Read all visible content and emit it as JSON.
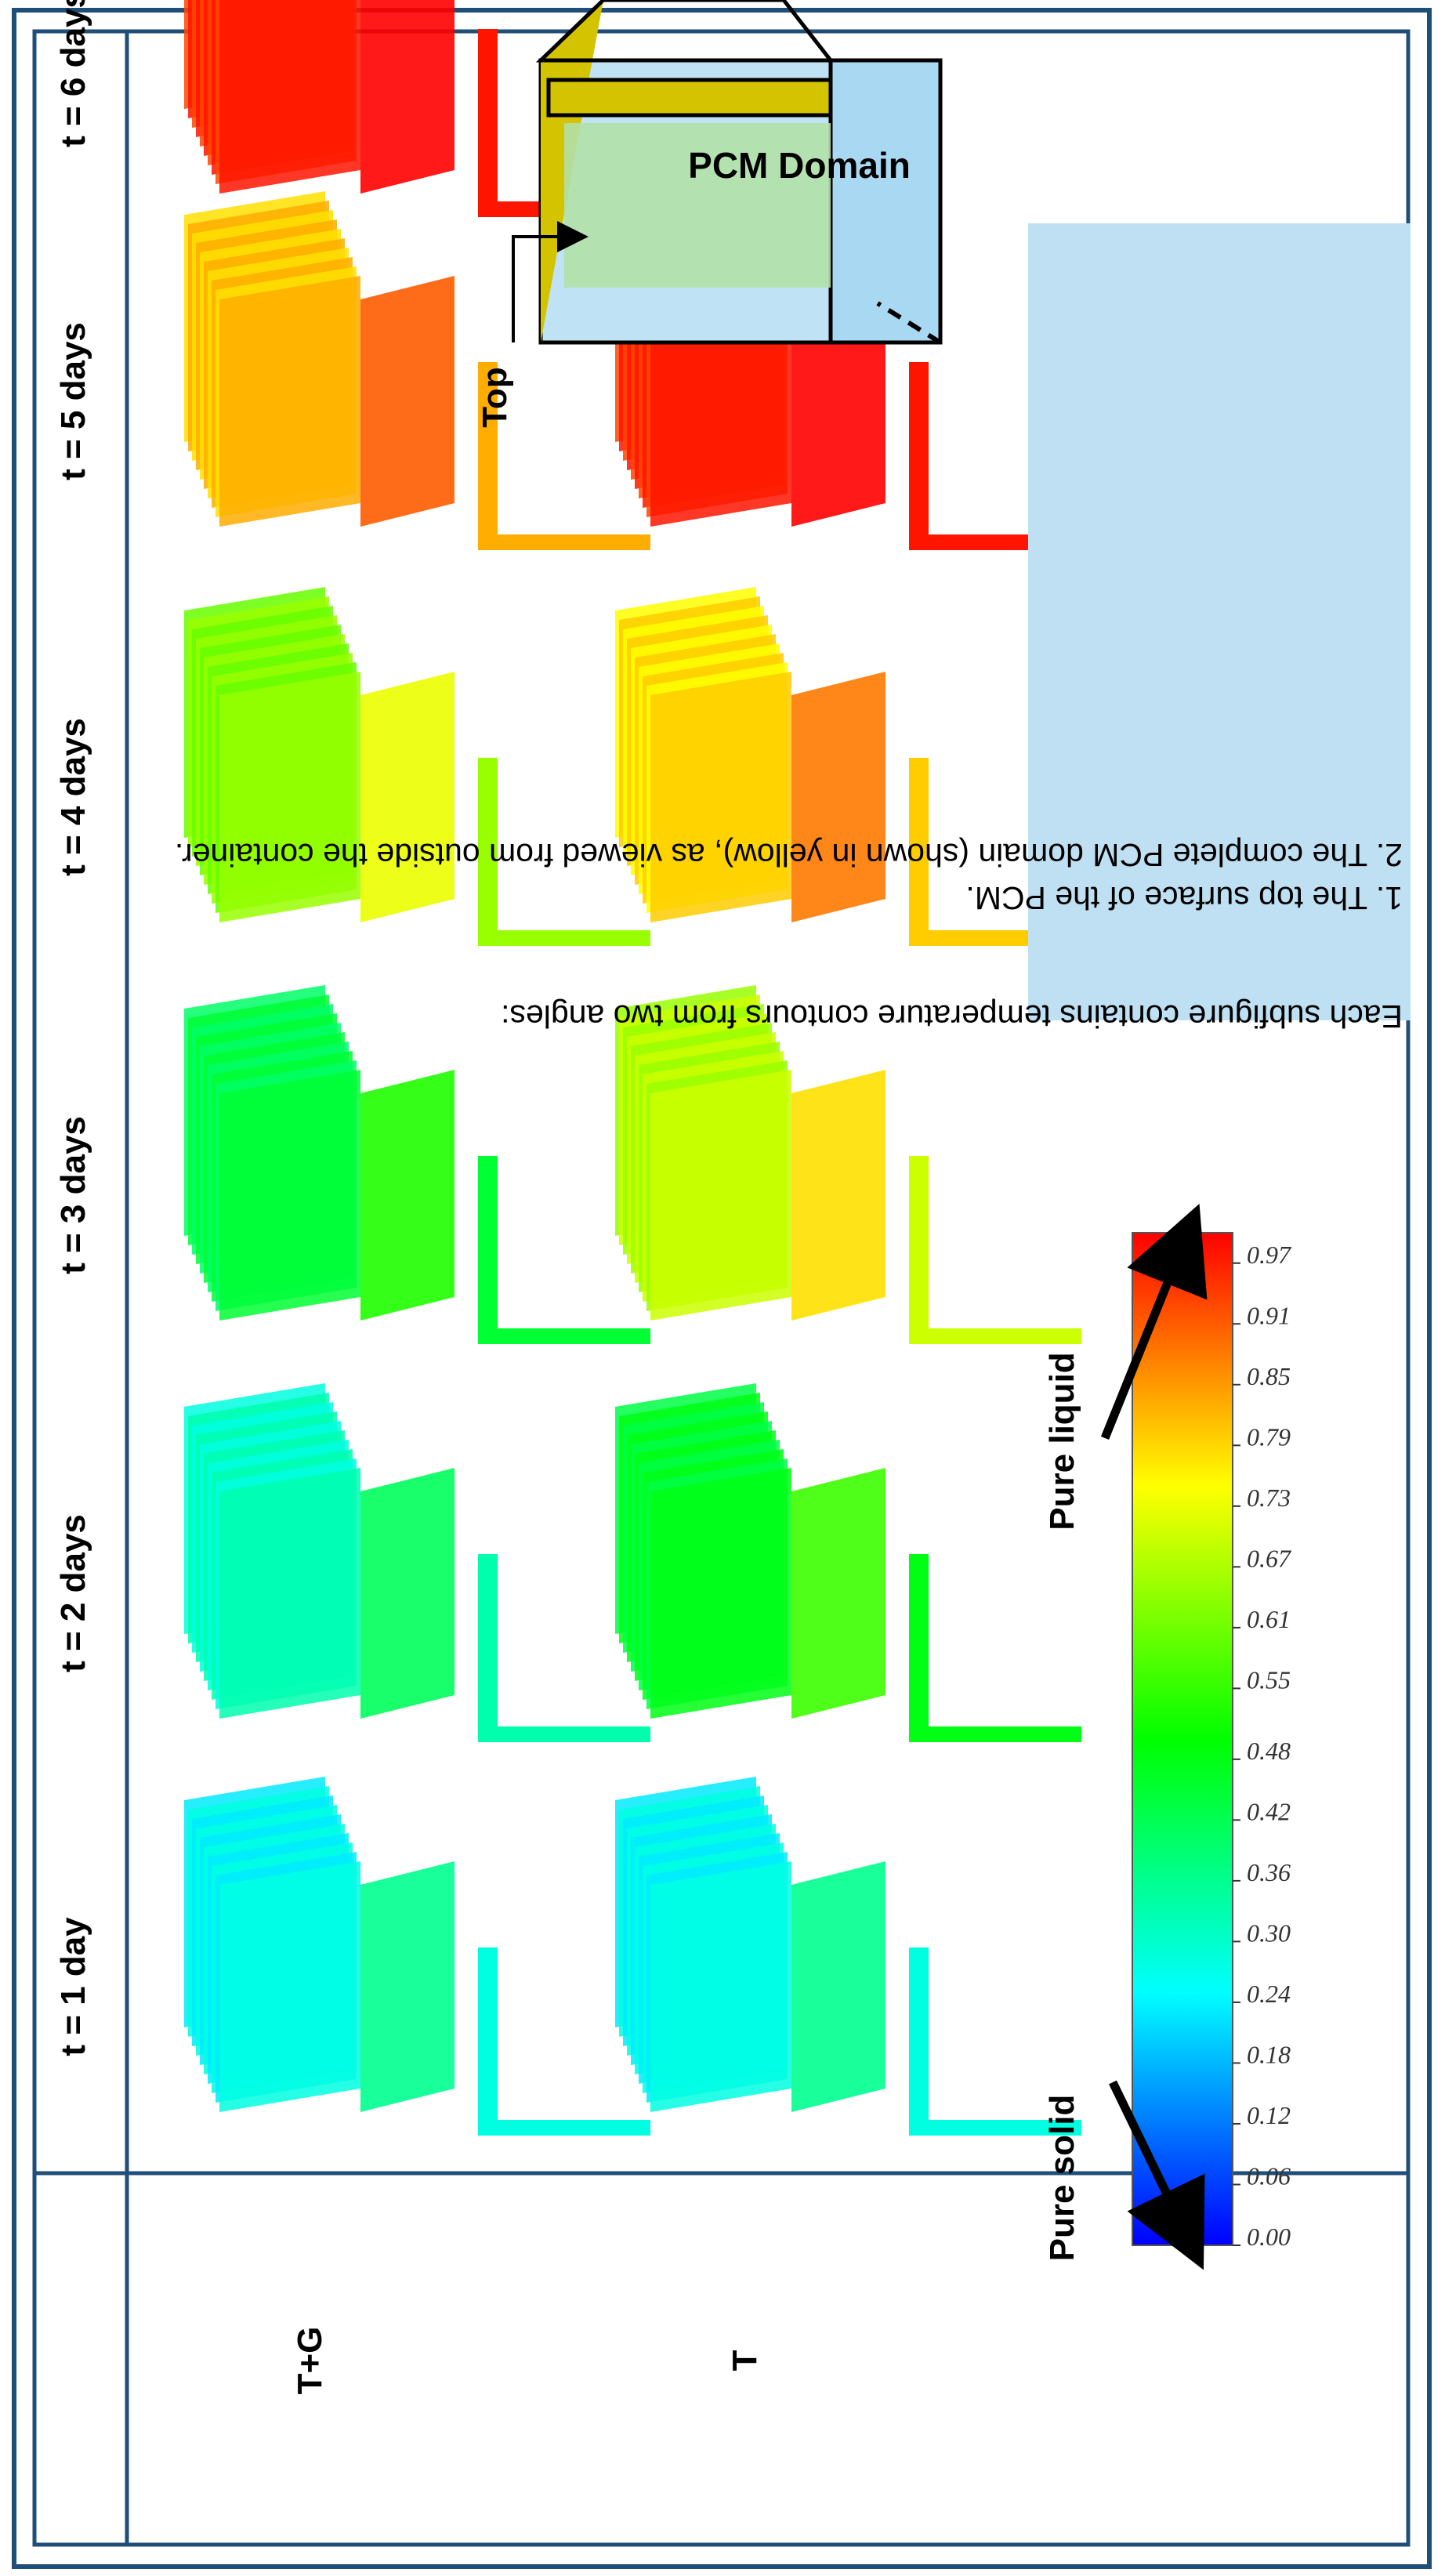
{
  "rows": [
    "T+G",
    "T"
  ],
  "columns": [
    "t = 1 day",
    "t = 2 days",
    "t = 3 days",
    "t = 4 days",
    "t = 5 days",
    "t = 6 days"
  ],
  "contour_levels": [
    {
      "row": "T+G",
      "levels": [
        0.28,
        0.33,
        0.45,
        0.65,
        0.83,
        0.98
      ]
    },
    {
      "row": "T",
      "levels": [
        0.28,
        0.48,
        0.7,
        0.8,
        0.98,
        null
      ]
    }
  ],
  "colorbar": {
    "ticks": [
      "0.00",
      "0.06",
      "0.12",
      "0.18",
      "0.24",
      "0.30",
      "0.36",
      "0.42",
      "0.48",
      "0.55",
      "0.61",
      "0.67",
      "0.73",
      "0.79",
      "0.85",
      "0.91",
      "0.97"
    ],
    "min": 0.0,
    "max": 1.0,
    "label_low": "Pure solid",
    "label_high": "Pure liquid"
  },
  "domain_sketch": {
    "title": "PCM Domain",
    "pointer_label": "Top"
  },
  "note": {
    "intro": "Each subfigure contains temperature contours from two angles:",
    "items": [
      "1. The top surface of the PCM.",
      "2. The complete PCM domain (shown in yellow), as viewed from outside the container."
    ]
  },
  "colors": {
    "border": "#1f4e79",
    "note_bg": "#bfe0f2",
    "pcm_yellow": "#d4c300",
    "pcm_blue": "#a8d8f0",
    "pcm_green": "#b2e0a4"
  }
}
